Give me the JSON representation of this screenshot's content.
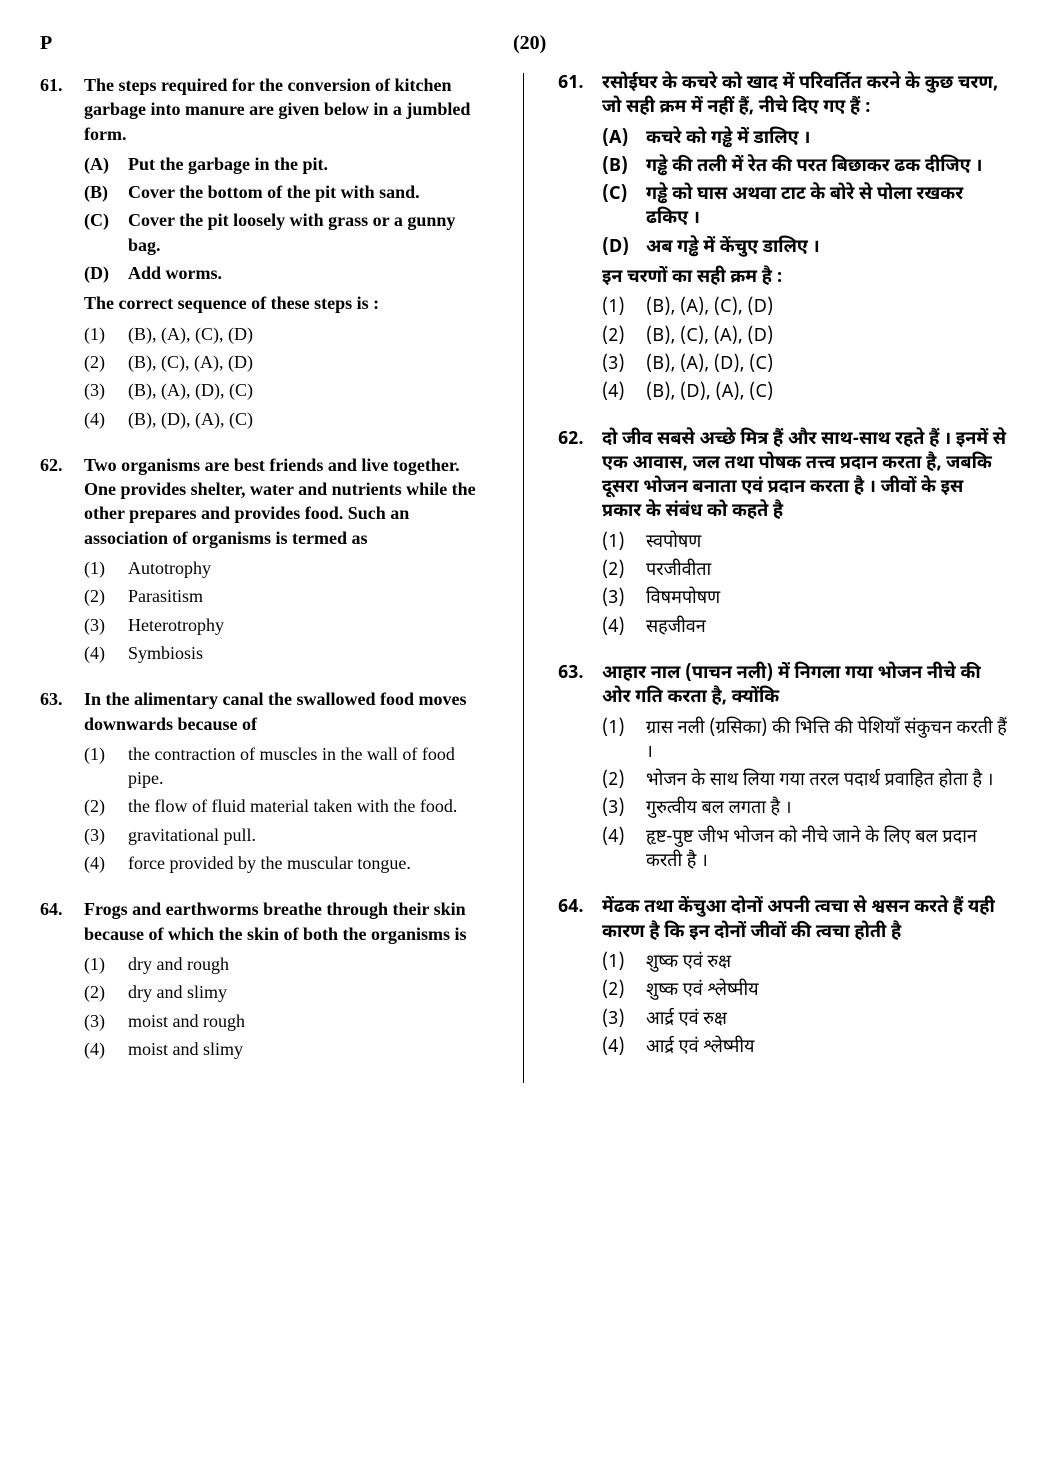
{
  "header": {
    "code": "P",
    "page": "(20)"
  },
  "left": {
    "q61": {
      "num": "61.",
      "stem": "The steps required for the conversion of kitchen garbage into manure are given below in a jumbled form.",
      "subs": [
        {
          "label": "(A)",
          "text": "Put the garbage in the pit."
        },
        {
          "label": "(B)",
          "text": "Cover the bottom of the pit with sand."
        },
        {
          "label": "(C)",
          "text": "Cover the pit loosely with grass or a gunny bag."
        },
        {
          "label": "(D)",
          "text": "Add worms."
        }
      ],
      "prompt": "The correct sequence of these steps is :",
      "opts": [
        {
          "label": "(1)",
          "text": "(B), (A), (C), (D)"
        },
        {
          "label": "(2)",
          "text": "(B), (C), (A), (D)"
        },
        {
          "label": "(3)",
          "text": "(B), (A), (D), (C)"
        },
        {
          "label": "(4)",
          "text": "(B), (D), (A), (C)"
        }
      ]
    },
    "q62": {
      "num": "62.",
      "stem": "Two organisms are best friends and live together. One provides shelter, water and nutrients while the other prepares and provides food. Such an association of organisms is termed as",
      "opts": [
        {
          "label": "(1)",
          "text": "Autotrophy"
        },
        {
          "label": "(2)",
          "text": "Parasitism"
        },
        {
          "label": "(3)",
          "text": "Heterotrophy"
        },
        {
          "label": "(4)",
          "text": "Symbiosis"
        }
      ]
    },
    "q63": {
      "num": "63.",
      "stem": "In the alimentary canal the swallowed food moves downwards because of",
      "opts": [
        {
          "label": "(1)",
          "text": "the contraction of muscles in the wall of food pipe."
        },
        {
          "label": "(2)",
          "text": "the flow of fluid material taken with the food."
        },
        {
          "label": "(3)",
          "text": "gravitational pull."
        },
        {
          "label": "(4)",
          "text": "force provided by the muscular tongue."
        }
      ]
    },
    "q64": {
      "num": "64.",
      "stem": "Frogs and earthworms breathe through their skin because of which the skin of both the organisms is",
      "opts": [
        {
          "label": "(1)",
          "text": "dry and rough"
        },
        {
          "label": "(2)",
          "text": "dry and slimy"
        },
        {
          "label": "(3)",
          "text": "moist and rough"
        },
        {
          "label": "(4)",
          "text": "moist and slimy"
        }
      ]
    }
  },
  "right": {
    "q61": {
      "num": "61.",
      "stem": "रसोईघर के कचरे को खाद में परिवर्तित करने के कुछ चरण, जो सही क्रम में नहीं हैं, नीचे दिए गए हैं :",
      "subs": [
        {
          "label": "(A)",
          "text": "कचरे को गड्ढे में डालिए ।"
        },
        {
          "label": "(B)",
          "text": "गड्ढे की तली में रेत की परत बिछाकर ढक दीजिए ।"
        },
        {
          "label": "(C)",
          "text": "गड्ढे को घास अथवा टाट के बोरे से पोला रखकर ढकिए ।"
        },
        {
          "label": "(D)",
          "text": "अब गड्ढे में केंचुए डालिए ।"
        }
      ],
      "prompt": "इन चरणों का सही क्रम है :",
      "opts": [
        {
          "label": "(1)",
          "text": "(B), (A), (C), (D)"
        },
        {
          "label": "(2)",
          "text": "(B), (C), (A), (D)"
        },
        {
          "label": "(3)",
          "text": "(B), (A), (D), (C)"
        },
        {
          "label": "(4)",
          "text": "(B), (D), (A), (C)"
        }
      ]
    },
    "q62": {
      "num": "62.",
      "stem": "दो जीव सबसे अच्छे मित्र हैं और साथ-साथ रहते हैं । इनमें से एक आवास, जल तथा पोषक तत्त्व प्रदान करता है, जबकि दूसरा भोजन बनाता एवं प्रदान करता है । जीवों के इस प्रकार के संबंध को कहते है",
      "opts": [
        {
          "label": "(1)",
          "text": "स्वपोषण"
        },
        {
          "label": "(2)",
          "text": "परजीवीता"
        },
        {
          "label": "(3)",
          "text": "विषमपोषण"
        },
        {
          "label": "(4)",
          "text": "सहजीवन"
        }
      ]
    },
    "q63": {
      "num": "63.",
      "stem": "आहार नाल (पाचन नली) में निगला गया भोजन नीचे की ओर गति करता है, क्योंकि",
      "opts": [
        {
          "label": "(1)",
          "text": "ग्रास नली (ग्रसिका) की भित्ति की पेशियाँ संकुचन करती हैं ।"
        },
        {
          "label": "(2)",
          "text": "भोजन के साथ लिया गया तरल पदार्थ प्रवाहित होता है ।"
        },
        {
          "label": "(3)",
          "text": "गुरुत्वीय बल लगता है ।"
        },
        {
          "label": "(4)",
          "text": "हृष्ट-पुष्ट जीभ भोजन को नीचे जाने के लिए बल प्रदान करती है ।"
        }
      ]
    },
    "q64": {
      "num": "64.",
      "stem": "मेंढक तथा केंचुआ दोनों अपनी त्वचा से श्वसन करते हैं यही कारण है कि इन दोनों जीवों की त्वचा होती है",
      "opts": [
        {
          "label": "(1)",
          "text": "शुष्क एवं रुक्ष"
        },
        {
          "label": "(2)",
          "text": "शुष्क एवं श्लेष्मीय"
        },
        {
          "label": "(3)",
          "text": "आर्द्र एवं रुक्ष"
        },
        {
          "label": "(4)",
          "text": "आर्द्र एवं श्लेष्मीय"
        }
      ]
    }
  }
}
